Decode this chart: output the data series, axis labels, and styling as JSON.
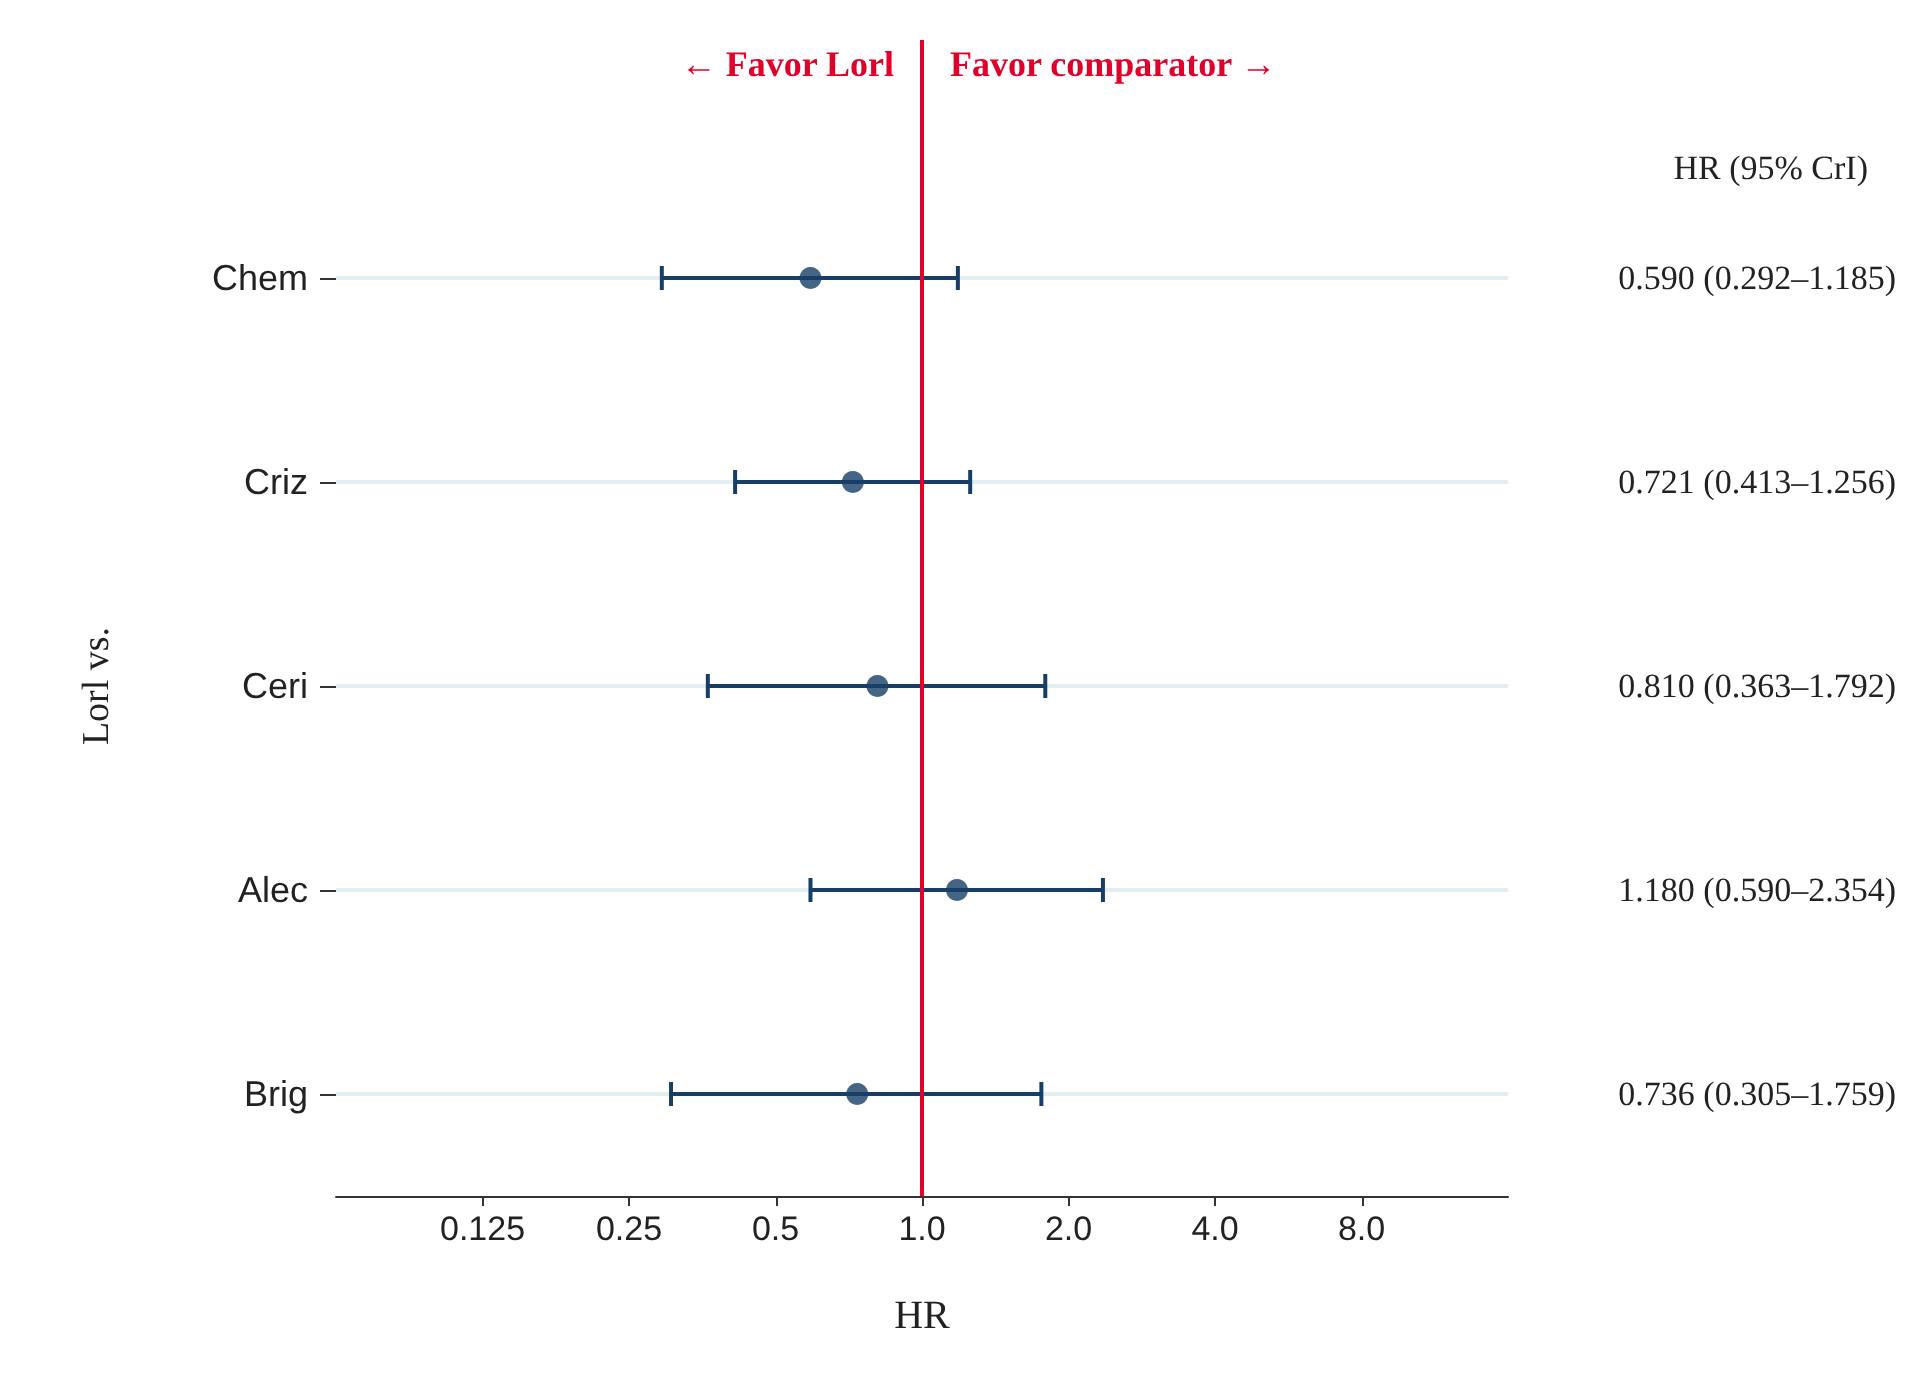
{
  "chart_data": {
    "type": "scatter",
    "xlabel": "HR",
    "ylabel": "Lorl vs.",
    "categories": [
      "Chem",
      "Criz",
      "Ceri",
      "Alec",
      "Brig"
    ],
    "values": [
      0.59,
      0.721,
      0.81,
      1.18,
      0.736
    ],
    "errors": [
      [
        0.292,
        1.185
      ],
      [
        0.413,
        1.256
      ],
      [
        0.363,
        1.792
      ],
      [
        0.59,
        2.354
      ],
      [
        0.305,
        1.759
      ]
    ],
    "value_labels": [
      "0.590 (0.292–1.185)",
      "0.721 (0.413–1.256)",
      "0.810 (0.363–1.792)",
      "1.180 (0.590–2.354)",
      "0.736 (0.305–1.759)"
    ],
    "color": "#173f66",
    "marker": "circle",
    "log": "x",
    "grid": "y",
    "xlim": [
      0.0625,
      16
    ],
    "orientation": "horizontal",
    "xticks": [
      {
        "value": 0.125,
        "label": "0.125"
      },
      {
        "value": 0.25,
        "label": "0.25"
      },
      {
        "value": 0.5,
        "label": "0.5"
      },
      {
        "value": 1,
        "label": "1.0"
      },
      {
        "value": 2,
        "label": "2.0"
      },
      {
        "value": 4,
        "label": "4.0"
      },
      {
        "value": 8,
        "label": "8.0"
      }
    ],
    "ref_lines": [
      {
        "axis": "x",
        "value": 1,
        "color": "#e0002a"
      }
    ],
    "annotations": [
      "← Favor Lorl",
      "Favor comparator →",
      "HR (95% CrI)"
    ]
  }
}
